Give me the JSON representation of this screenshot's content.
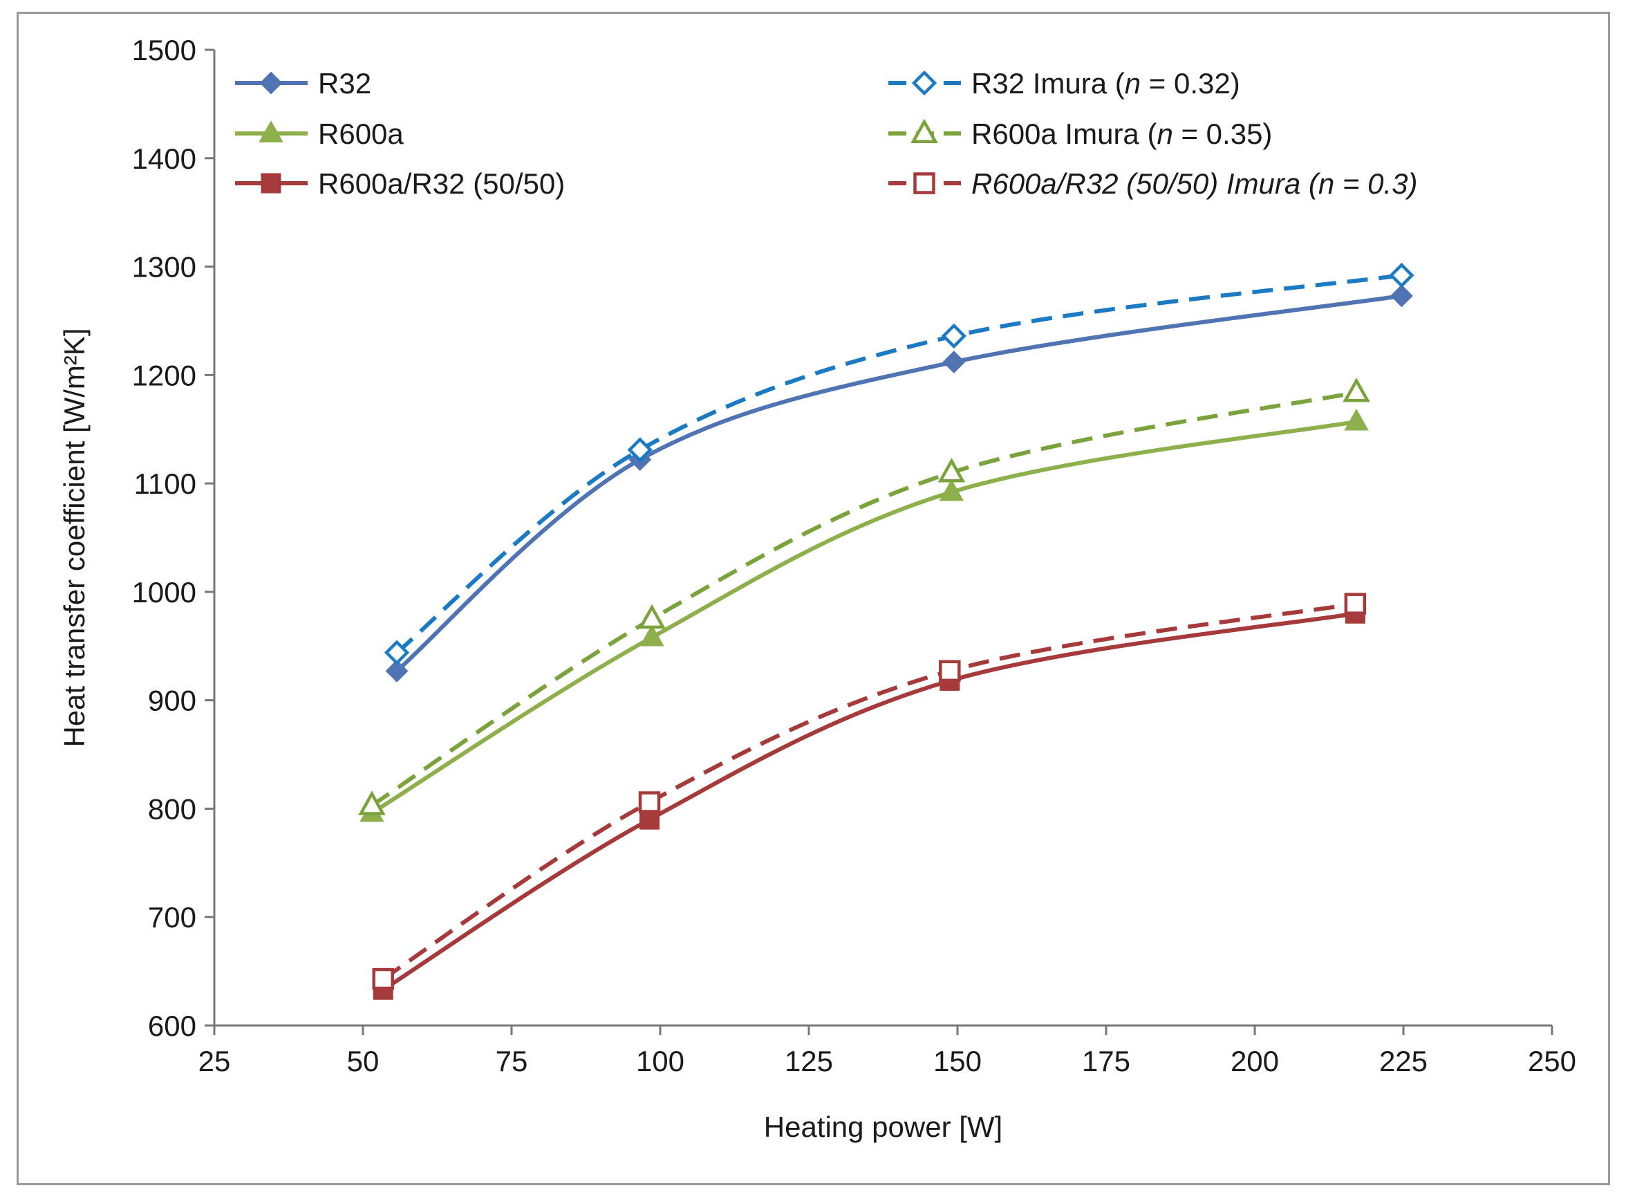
{
  "chart_data": {
    "type": "line",
    "xlabel": "Heating power [W]",
    "ylabel": "Heat transfer coefficient [W/m²K]",
    "xlim": [
      25,
      250
    ],
    "ylim": [
      600,
      1500
    ],
    "xticks": [
      "25",
      "50",
      "75",
      "100",
      "125",
      "150",
      "175",
      "200",
      "225",
      "250"
    ],
    "yticks": [
      "600",
      "700",
      "800",
      "900",
      "1000",
      "1100",
      "1200",
      "1300",
      "1400",
      "1500"
    ],
    "grid": false,
    "legend_position": "top",
    "series": [
      {
        "name": "R32",
        "legend_parts": [
          {
            "text": "R32",
            "italic": false
          }
        ],
        "color": "#4f73b3",
        "dashed": false,
        "marker": "diamond",
        "filled": true,
        "x": [
          55.7,
          96.6,
          149.4,
          224.7
        ],
        "y": [
          927,
          1122,
          1212,
          1273
        ]
      },
      {
        "name": "R32 Imura (n = 0.32)",
        "legend_parts": [
          {
            "text": "R32 Imura (",
            "italic": false
          },
          {
            "text": "n",
            "italic": true
          },
          {
            "text": " = 0.32)",
            "italic": false
          }
        ],
        "color": "#1b7ac4",
        "dashed": true,
        "marker": "diamond",
        "filled": false,
        "x": [
          55.7,
          96.6,
          149.4,
          224.7
        ],
        "y": [
          944,
          1131,
          1236,
          1292
        ]
      },
      {
        "name": "R600a",
        "legend_parts": [
          {
            "text": "R600a",
            "italic": false
          }
        ],
        "color": "#8db04c",
        "dashed": false,
        "marker": "triangle",
        "filled": true,
        "x": [
          51.5,
          98.6,
          149.0,
          217.1
        ],
        "y": [
          796,
          958,
          1092,
          1157
        ]
      },
      {
        "name": "R600a Imura (n = 0.35)",
        "legend_parts": [
          {
            "text": "R600a Imura (",
            "italic": false
          },
          {
            "text": "n",
            "italic": true
          },
          {
            "text": " = 0.35)",
            "italic": false
          }
        ],
        "color": "#7aa33c",
        "dashed": true,
        "marker": "triangle",
        "filled": false,
        "x": [
          51.5,
          98.6,
          149.0,
          217.1
        ],
        "y": [
          803,
          975,
          1110,
          1184
        ]
      },
      {
        "name": "R600a/R32 (50/50)",
        "legend_parts": [
          {
            "text": "R600a/R32 (50/50)",
            "italic": false
          }
        ],
        "color": "#a63a3a",
        "dashed": false,
        "marker": "square",
        "filled": true,
        "x": [
          53.4,
          98.2,
          148.7,
          216.9
        ],
        "y": [
          633,
          790,
          918,
          980
        ]
      },
      {
        "name": "R600a/R32 (50/50) Imura (n = 0.3)",
        "legend_parts": [
          {
            "text": "R600a/R32 (50/50) Imura (n = 0.3)",
            "italic": true
          }
        ],
        "color": "#a63a3a",
        "dashed": true,
        "marker": "square",
        "filled": false,
        "x": [
          53.4,
          98.2,
          148.7,
          216.9
        ],
        "y": [
          643,
          806,
          927,
          989
        ]
      }
    ]
  }
}
